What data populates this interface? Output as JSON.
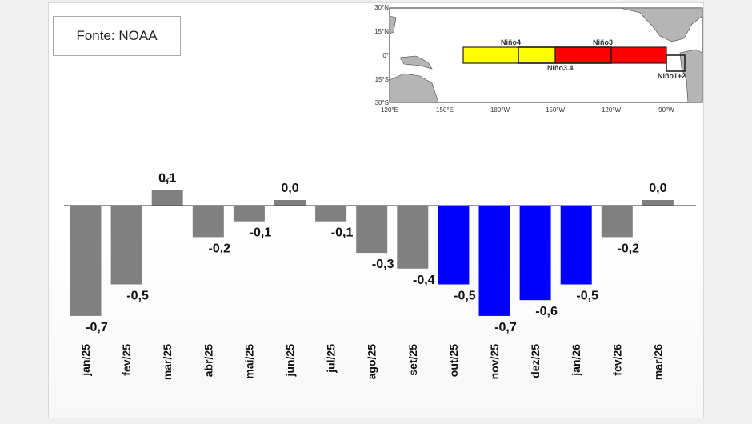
{
  "source_label": "Fonte: NOAA",
  "colors": {
    "neutral_bar": "#808080",
    "la_nina_bar": "#0000ff",
    "nino4_box": "#ffff00",
    "nino3_box": "#ff0000"
  },
  "map": {
    "lat_labels": [
      "30°N",
      "15°N",
      "0°",
      "15°S",
      "30°S"
    ],
    "lon_labels": [
      "120°E",
      "150°E",
      "180°W",
      "150°W",
      "120°W",
      "90°W"
    ],
    "regions": [
      "Niño4",
      "Niño3.4",
      "Niño3",
      "Niño1+2"
    ]
  },
  "chart_data": {
    "type": "bar",
    "title": "",
    "xlabel": "",
    "ylabel": "",
    "categories": [
      "jan/25",
      "fev/25",
      "mar/25",
      "abr/25",
      "mai/25",
      "jun/25",
      "jul/25",
      "ago/25",
      "set/25",
      "out/25",
      "nov/25",
      "dez/25",
      "jan/26",
      "fev/26",
      "mar/26"
    ],
    "values": [
      -0.7,
      -0.5,
      0.1,
      -0.2,
      -0.1,
      0.0,
      -0.1,
      -0.3,
      -0.4,
      -0.5,
      -0.7,
      -0.6,
      -0.5,
      -0.2,
      0.0
    ],
    "value_labels": [
      "-0,7",
      "-0,5",
      "0,1",
      "-0,2",
      "-0,1",
      "0,0",
      "-0,1",
      "-0,3",
      "-0,4",
      "-0,5",
      "-0,7",
      "-0,6",
      "-0,5",
      "-0,2",
      "0,0"
    ],
    "bar_colors": [
      "neutral",
      "neutral",
      "neutral",
      "neutral",
      "neutral",
      "neutral",
      "neutral",
      "neutral",
      "neutral",
      "la_nina",
      "la_nina",
      "la_nina",
      "la_nina",
      "neutral",
      "neutral"
    ],
    "grid": false
  }
}
